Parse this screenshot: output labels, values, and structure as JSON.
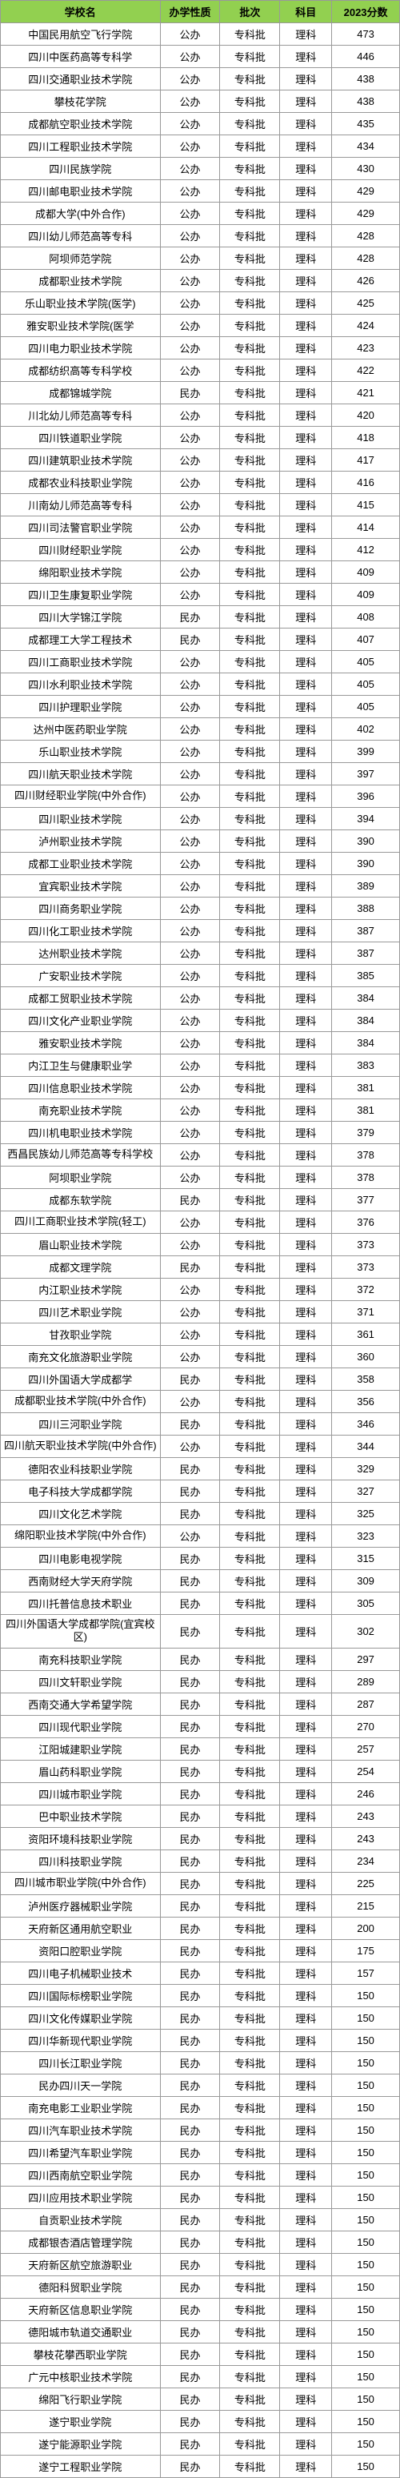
{
  "headers": {
    "name": "学校名",
    "type": "办学性质",
    "batch": "批次",
    "subject": "科目",
    "score": "2023分数"
  },
  "rows": [
    {
      "name": "中国民用航空飞行学院",
      "type": "公办",
      "batch": "专科批",
      "subject": "理科",
      "score": "473"
    },
    {
      "name": "四川中医药高等专科学",
      "type": "公办",
      "batch": "专科批",
      "subject": "理科",
      "score": "446"
    },
    {
      "name": "四川交通职业技术学院",
      "type": "公办",
      "batch": "专科批",
      "subject": "理科",
      "score": "438"
    },
    {
      "name": "攀枝花学院",
      "type": "公办",
      "batch": "专科批",
      "subject": "理科",
      "score": "438"
    },
    {
      "name": "成都航空职业技术学院",
      "type": "公办",
      "batch": "专科批",
      "subject": "理科",
      "score": "435"
    },
    {
      "name": "四川工程职业技术学院",
      "type": "公办",
      "batch": "专科批",
      "subject": "理科",
      "score": "434"
    },
    {
      "name": "四川民族学院",
      "type": "公办",
      "batch": "专科批",
      "subject": "理科",
      "score": "430"
    },
    {
      "name": "四川邮电职业技术学院",
      "type": "公办",
      "batch": "专科批",
      "subject": "理科",
      "score": "429"
    },
    {
      "name": "成都大学(中外合作)",
      "type": "公办",
      "batch": "专科批",
      "subject": "理科",
      "score": "429"
    },
    {
      "name": "四川幼儿师范高等专科",
      "type": "公办",
      "batch": "专科批",
      "subject": "理科",
      "score": "428"
    },
    {
      "name": "阿坝师范学院",
      "type": "公办",
      "batch": "专科批",
      "subject": "理科",
      "score": "428"
    },
    {
      "name": "成都职业技术学院",
      "type": "公办",
      "batch": "专科批",
      "subject": "理科",
      "score": "426"
    },
    {
      "name": "乐山职业技术学院(医学)",
      "type": "公办",
      "batch": "专科批",
      "subject": "理科",
      "score": "425"
    },
    {
      "name": "雅安职业技术学院(医学",
      "type": "公办",
      "batch": "专科批",
      "subject": "理科",
      "score": "424"
    },
    {
      "name": "四川电力职业技术学院",
      "type": "公办",
      "batch": "专科批",
      "subject": "理科",
      "score": "423"
    },
    {
      "name": "成都纺织高等专科学校",
      "type": "公办",
      "batch": "专科批",
      "subject": "理科",
      "score": "422"
    },
    {
      "name": "成都锦城学院",
      "type": "民办",
      "batch": "专科批",
      "subject": "理科",
      "score": "421"
    },
    {
      "name": "川北幼儿师范高等专科",
      "type": "公办",
      "batch": "专科批",
      "subject": "理科",
      "score": "420"
    },
    {
      "name": "四川铁道职业学院",
      "type": "公办",
      "batch": "专科批",
      "subject": "理科",
      "score": "418"
    },
    {
      "name": "四川建筑职业技术学院",
      "type": "公办",
      "batch": "专科批",
      "subject": "理科",
      "score": "417"
    },
    {
      "name": "成都农业科技职业学院",
      "type": "公办",
      "batch": "专科批",
      "subject": "理科",
      "score": "416"
    },
    {
      "name": "川南幼儿师范高等专科",
      "type": "公办",
      "batch": "专科批",
      "subject": "理科",
      "score": "415"
    },
    {
      "name": "四川司法警官职业学院",
      "type": "公办",
      "batch": "专科批",
      "subject": "理科",
      "score": "414"
    },
    {
      "name": "四川财经职业学院",
      "type": "公办",
      "batch": "专科批",
      "subject": "理科",
      "score": "412"
    },
    {
      "name": "绵阳职业技术学院",
      "type": "公办",
      "batch": "专科批",
      "subject": "理科",
      "score": "409"
    },
    {
      "name": "四川卫生康复职业学院",
      "type": "公办",
      "batch": "专科批",
      "subject": "理科",
      "score": "409"
    },
    {
      "name": "四川大学锦江学院",
      "type": "民办",
      "batch": "专科批",
      "subject": "理科",
      "score": "408"
    },
    {
      "name": "成都理工大学工程技术",
      "type": "民办",
      "batch": "专科批",
      "subject": "理科",
      "score": "407"
    },
    {
      "name": "四川工商职业技术学院",
      "type": "公办",
      "batch": "专科批",
      "subject": "理科",
      "score": "405"
    },
    {
      "name": "四川水利职业技术学院",
      "type": "公办",
      "batch": "专科批",
      "subject": "理科",
      "score": "405"
    },
    {
      "name": "四川护理职业学院",
      "type": "公办",
      "batch": "专科批",
      "subject": "理科",
      "score": "405"
    },
    {
      "name": "达州中医药职业学院",
      "type": "公办",
      "batch": "专科批",
      "subject": "理科",
      "score": "402"
    },
    {
      "name": "乐山职业技术学院",
      "type": "公办",
      "batch": "专科批",
      "subject": "理科",
      "score": "399"
    },
    {
      "name": "四川航天职业技术学院",
      "type": "公办",
      "batch": "专科批",
      "subject": "理科",
      "score": "397"
    },
    {
      "name": "四川财经职业学院(中外合作)",
      "type": "公办",
      "batch": "专科批",
      "subject": "理科",
      "score": "396",
      "wrap": true
    },
    {
      "name": "四川职业技术学院",
      "type": "公办",
      "batch": "专科批",
      "subject": "理科",
      "score": "394"
    },
    {
      "name": "泸州职业技术学院",
      "type": "公办",
      "batch": "专科批",
      "subject": "理科",
      "score": "390"
    },
    {
      "name": "成都工业职业技术学院",
      "type": "公办",
      "batch": "专科批",
      "subject": "理科",
      "score": "390"
    },
    {
      "name": "宜宾职业技术学院",
      "type": "公办",
      "batch": "专科批",
      "subject": "理科",
      "score": "389"
    },
    {
      "name": "四川商务职业学院",
      "type": "公办",
      "batch": "专科批",
      "subject": "理科",
      "score": "388"
    },
    {
      "name": "四川化工职业技术学院",
      "type": "公办",
      "batch": "专科批",
      "subject": "理科",
      "score": "387"
    },
    {
      "name": "达州职业技术学院",
      "type": "公办",
      "batch": "专科批",
      "subject": "理科",
      "score": "387"
    },
    {
      "name": "广安职业技术学院",
      "type": "公办",
      "batch": "专科批",
      "subject": "理科",
      "score": "385"
    },
    {
      "name": "成都工贸职业技术学院",
      "type": "公办",
      "batch": "专科批",
      "subject": "理科",
      "score": "384"
    },
    {
      "name": "四川文化产业职业学院",
      "type": "公办",
      "batch": "专科批",
      "subject": "理科",
      "score": "384"
    },
    {
      "name": "雅安职业技术学院",
      "type": "公办",
      "batch": "专科批",
      "subject": "理科",
      "score": "384"
    },
    {
      "name": "内江卫生与健康职业学",
      "type": "公办",
      "batch": "专科批",
      "subject": "理科",
      "score": "383"
    },
    {
      "name": "四川信息职业技术学院",
      "type": "公办",
      "batch": "专科批",
      "subject": "理科",
      "score": "381"
    },
    {
      "name": "南充职业技术学院",
      "type": "公办",
      "batch": "专科批",
      "subject": "理科",
      "score": "381"
    },
    {
      "name": "四川机电职业技术学院",
      "type": "公办",
      "batch": "专科批",
      "subject": "理科",
      "score": "379"
    },
    {
      "name": "西昌民族幼儿师范高等专科学校",
      "type": "公办",
      "batch": "专科批",
      "subject": "理科",
      "score": "378",
      "wrap": true
    },
    {
      "name": "阿坝职业学院",
      "type": "公办",
      "batch": "专科批",
      "subject": "理科",
      "score": "378"
    },
    {
      "name": "成都东软学院",
      "type": "民办",
      "batch": "专科批",
      "subject": "理科",
      "score": "377"
    },
    {
      "name": "四川工商职业技术学院(轻工)",
      "type": "公办",
      "batch": "专科批",
      "subject": "理科",
      "score": "376",
      "wrap": true
    },
    {
      "name": "眉山职业技术学院",
      "type": "公办",
      "batch": "专科批",
      "subject": "理科",
      "score": "373"
    },
    {
      "name": "成都文理学院",
      "type": "民办",
      "batch": "专科批",
      "subject": "理科",
      "score": "373"
    },
    {
      "name": "内江职业技术学院",
      "type": "公办",
      "batch": "专科批",
      "subject": "理科",
      "score": "372"
    },
    {
      "name": "四川艺术职业学院",
      "type": "公办",
      "batch": "专科批",
      "subject": "理科",
      "score": "371"
    },
    {
      "name": "甘孜职业学院",
      "type": "公办",
      "batch": "专科批",
      "subject": "理科",
      "score": "361"
    },
    {
      "name": "南充文化旅游职业学院",
      "type": "公办",
      "batch": "专科批",
      "subject": "理科",
      "score": "360"
    },
    {
      "name": "四川外国语大学成都学",
      "type": "民办",
      "batch": "专科批",
      "subject": "理科",
      "score": "358"
    },
    {
      "name": "成都职业技术学院(中外合作)",
      "type": "公办",
      "batch": "专科批",
      "subject": "理科",
      "score": "356",
      "wrap": true
    },
    {
      "name": "四川三河职业学院",
      "type": "民办",
      "batch": "专科批",
      "subject": "理科",
      "score": "346"
    },
    {
      "name": "四川航天职业技术学院(中外合作)",
      "type": "公办",
      "batch": "专科批",
      "subject": "理科",
      "score": "344",
      "wrap": true
    },
    {
      "name": "德阳农业科技职业学院",
      "type": "民办",
      "batch": "专科批",
      "subject": "理科",
      "score": "329"
    },
    {
      "name": "电子科技大学成都学院",
      "type": "民办",
      "batch": "专科批",
      "subject": "理科",
      "score": "327"
    },
    {
      "name": "四川文化艺术学院",
      "type": "民办",
      "batch": "专科批",
      "subject": "理科",
      "score": "325"
    },
    {
      "name": "绵阳职业技术学院(中外合作)",
      "type": "公办",
      "batch": "专科批",
      "subject": "理科",
      "score": "323",
      "wrap": true
    },
    {
      "name": "四川电影电视学院",
      "type": "民办",
      "batch": "专科批",
      "subject": "理科",
      "score": "315"
    },
    {
      "name": "西南财经大学天府学院",
      "type": "民办",
      "batch": "专科批",
      "subject": "理科",
      "score": "309"
    },
    {
      "name": "四川托普信息技术职业",
      "type": "民办",
      "batch": "专科批",
      "subject": "理科",
      "score": "305"
    },
    {
      "name": "四川外国语大学成都学院(宜宾校区)",
      "type": "民办",
      "batch": "专科批",
      "subject": "理科",
      "score": "302",
      "wrap": true
    },
    {
      "name": "南充科技职业学院",
      "type": "民办",
      "batch": "专科批",
      "subject": "理科",
      "score": "297"
    },
    {
      "name": "四川文轩职业学院",
      "type": "民办",
      "batch": "专科批",
      "subject": "理科",
      "score": "289"
    },
    {
      "name": "西南交通大学希望学院",
      "type": "民办",
      "batch": "专科批",
      "subject": "理科",
      "score": "287"
    },
    {
      "name": "四川现代职业学院",
      "type": "民办",
      "batch": "专科批",
      "subject": "理科",
      "score": "270"
    },
    {
      "name": "江阳城建职业学院",
      "type": "民办",
      "batch": "专科批",
      "subject": "理科",
      "score": "257"
    },
    {
      "name": "眉山药科职业学院",
      "type": "民办",
      "batch": "专科批",
      "subject": "理科",
      "score": "254"
    },
    {
      "name": "四川城市职业学院",
      "type": "民办",
      "batch": "专科批",
      "subject": "理科",
      "score": "246"
    },
    {
      "name": "巴中职业技术学院",
      "type": "民办",
      "batch": "专科批",
      "subject": "理科",
      "score": "243"
    },
    {
      "name": "资阳环境科技职业学院",
      "type": "民办",
      "batch": "专科批",
      "subject": "理科",
      "score": "243"
    },
    {
      "name": "四川科技职业学院",
      "type": "民办",
      "batch": "专科批",
      "subject": "理科",
      "score": "234"
    },
    {
      "name": "四川城市职业学院(中外合作)",
      "type": "民办",
      "batch": "专科批",
      "subject": "理科",
      "score": "225",
      "wrap": true
    },
    {
      "name": "泸州医疗器械职业学院",
      "type": "民办",
      "batch": "专科批",
      "subject": "理科",
      "score": "215"
    },
    {
      "name": "天府新区通用航空职业",
      "type": "民办",
      "batch": "专科批",
      "subject": "理科",
      "score": "200"
    },
    {
      "name": "资阳口腔职业学院",
      "type": "民办",
      "batch": "专科批",
      "subject": "理科",
      "score": "175"
    },
    {
      "name": "四川电子机械职业技术",
      "type": "民办",
      "batch": "专科批",
      "subject": "理科",
      "score": "157"
    },
    {
      "name": "四川国际标榜职业学院",
      "type": "民办",
      "batch": "专科批",
      "subject": "理科",
      "score": "150"
    },
    {
      "name": "四川文化传媒职业学院",
      "type": "民办",
      "batch": "专科批",
      "subject": "理科",
      "score": "150"
    },
    {
      "name": "四川华新现代职业学院",
      "type": "民办",
      "batch": "专科批",
      "subject": "理科",
      "score": "150"
    },
    {
      "name": "四川长江职业学院",
      "type": "民办",
      "batch": "专科批",
      "subject": "理科",
      "score": "150"
    },
    {
      "name": "民办四川天一学院",
      "type": "民办",
      "batch": "专科批",
      "subject": "理科",
      "score": "150"
    },
    {
      "name": "南充电影工业职业学院",
      "type": "民办",
      "batch": "专科批",
      "subject": "理科",
      "score": "150"
    },
    {
      "name": "四川汽车职业技术学院",
      "type": "民办",
      "batch": "专科批",
      "subject": "理科",
      "score": "150"
    },
    {
      "name": "四川希望汽车职业学院",
      "type": "民办",
      "batch": "专科批",
      "subject": "理科",
      "score": "150"
    },
    {
      "name": "四川西南航空职业学院",
      "type": "民办",
      "batch": "专科批",
      "subject": "理科",
      "score": "150"
    },
    {
      "name": "四川应用技术职业学院",
      "type": "民办",
      "batch": "专科批",
      "subject": "理科",
      "score": "150"
    },
    {
      "name": "自贡职业技术学院",
      "type": "民办",
      "batch": "专科批",
      "subject": "理科",
      "score": "150"
    },
    {
      "name": "成都银杏酒店管理学院",
      "type": "民办",
      "batch": "专科批",
      "subject": "理科",
      "score": "150"
    },
    {
      "name": "天府新区航空旅游职业",
      "type": "民办",
      "batch": "专科批",
      "subject": "理科",
      "score": "150"
    },
    {
      "name": "德阳科贸职业学院",
      "type": "民办",
      "batch": "专科批",
      "subject": "理科",
      "score": "150"
    },
    {
      "name": "天府新区信息职业学院",
      "type": "民办",
      "batch": "专科批",
      "subject": "理科",
      "score": "150"
    },
    {
      "name": "德阳城市轨道交通职业",
      "type": "民办",
      "batch": "专科批",
      "subject": "理科",
      "score": "150"
    },
    {
      "name": "攀枝花攀西职业学院",
      "type": "民办",
      "batch": "专科批",
      "subject": "理科",
      "score": "150"
    },
    {
      "name": "广元中核职业技术学院",
      "type": "民办",
      "batch": "专科批",
      "subject": "理科",
      "score": "150"
    },
    {
      "name": "绵阳飞行职业学院",
      "type": "民办",
      "batch": "专科批",
      "subject": "理科",
      "score": "150"
    },
    {
      "name": "遂宁职业学院",
      "type": "民办",
      "batch": "专科批",
      "subject": "理科",
      "score": "150"
    },
    {
      "name": "遂宁能源职业学院",
      "type": "民办",
      "batch": "专科批",
      "subject": "理科",
      "score": "150"
    },
    {
      "name": "遂宁工程职业学院",
      "type": "民办",
      "batch": "专科批",
      "subject": "理科",
      "score": "150"
    }
  ]
}
